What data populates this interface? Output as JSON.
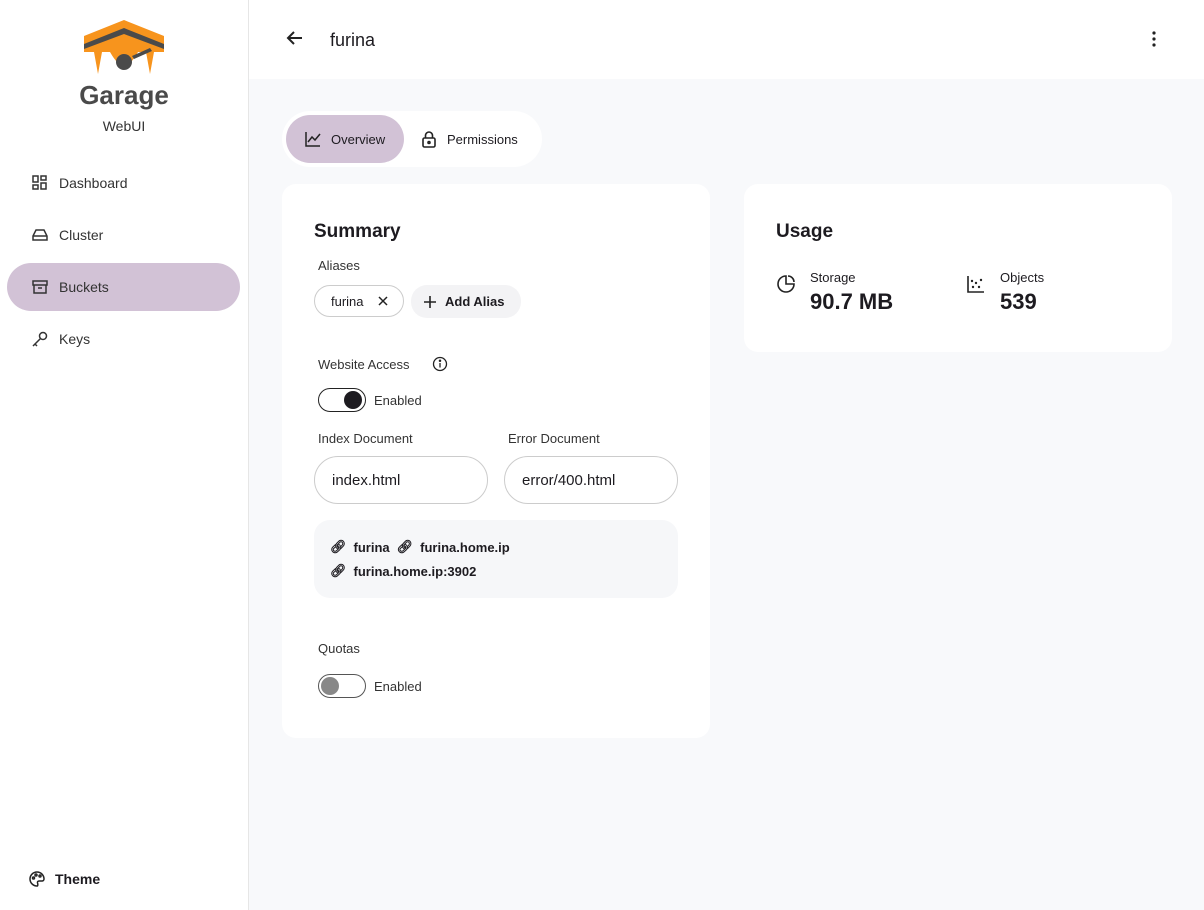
{
  "app": {
    "name": "Garage",
    "subtitle": "WebUI"
  },
  "sidebar": {
    "items": [
      {
        "label": "Dashboard",
        "icon": "dashboard-icon"
      },
      {
        "label": "Cluster",
        "icon": "hard-drive-icon"
      },
      {
        "label": "Buckets",
        "icon": "archive-icon",
        "active": true
      },
      {
        "label": "Keys",
        "icon": "key-icon"
      }
    ],
    "theme_label": "Theme"
  },
  "header": {
    "title": "furina"
  },
  "tabs": [
    {
      "label": "Overview",
      "active": true
    },
    {
      "label": "Permissions"
    }
  ],
  "summary": {
    "title": "Summary",
    "aliases_label": "Aliases",
    "aliases": [
      "furina"
    ],
    "add_alias": "Add Alias",
    "website_access_label": "Website Access",
    "website_toggle_label": "Enabled",
    "website_enabled": true,
    "index_label": "Index Document",
    "index_value": "index.html",
    "error_label": "Error Document",
    "error_value": "error/400.html",
    "links": [
      "furina",
      "furina.home.ip",
      "furina.home.ip:3902"
    ],
    "quotas_label": "Quotas",
    "quotas_toggle_label": "Enabled",
    "quotas_enabled": false
  },
  "usage": {
    "title": "Usage",
    "storage_label": "Storage",
    "storage_value": "90.7 MB",
    "objects_label": "Objects",
    "objects_value": "539"
  },
  "colors": {
    "accent": "#d2c2d6",
    "brand_orange": "#f7941d"
  }
}
